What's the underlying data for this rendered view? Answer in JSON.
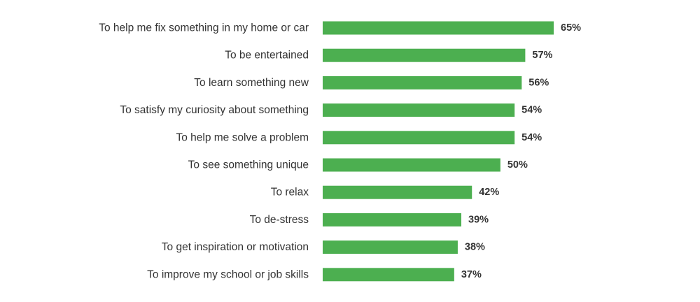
{
  "chart_data": {
    "type": "bar",
    "orientation": "horizontal",
    "title": "",
    "xlabel": "",
    "ylabel": "",
    "xlim": [
      0,
      100
    ],
    "grid": false,
    "legend": "none",
    "bar_color": "#4caf50",
    "text_color": "#333333",
    "value_suffix": "%",
    "categories": [
      "To help me fix something in my home or car",
      "To be entertained",
      "To learn something new",
      "To satisfy my curiosity about something",
      "To help me solve a problem",
      "To see something unique",
      "To relax",
      "To de-stress",
      "To get inspiration or motivation",
      "To improve my school or job skills"
    ],
    "values": [
      65,
      57,
      56,
      54,
      54,
      50,
      42,
      39,
      38,
      37
    ],
    "value_labels": [
      "65%",
      "57%",
      "56%",
      "54%",
      "54%",
      "50%",
      "42%",
      "39%",
      "38%",
      "37%"
    ]
  }
}
